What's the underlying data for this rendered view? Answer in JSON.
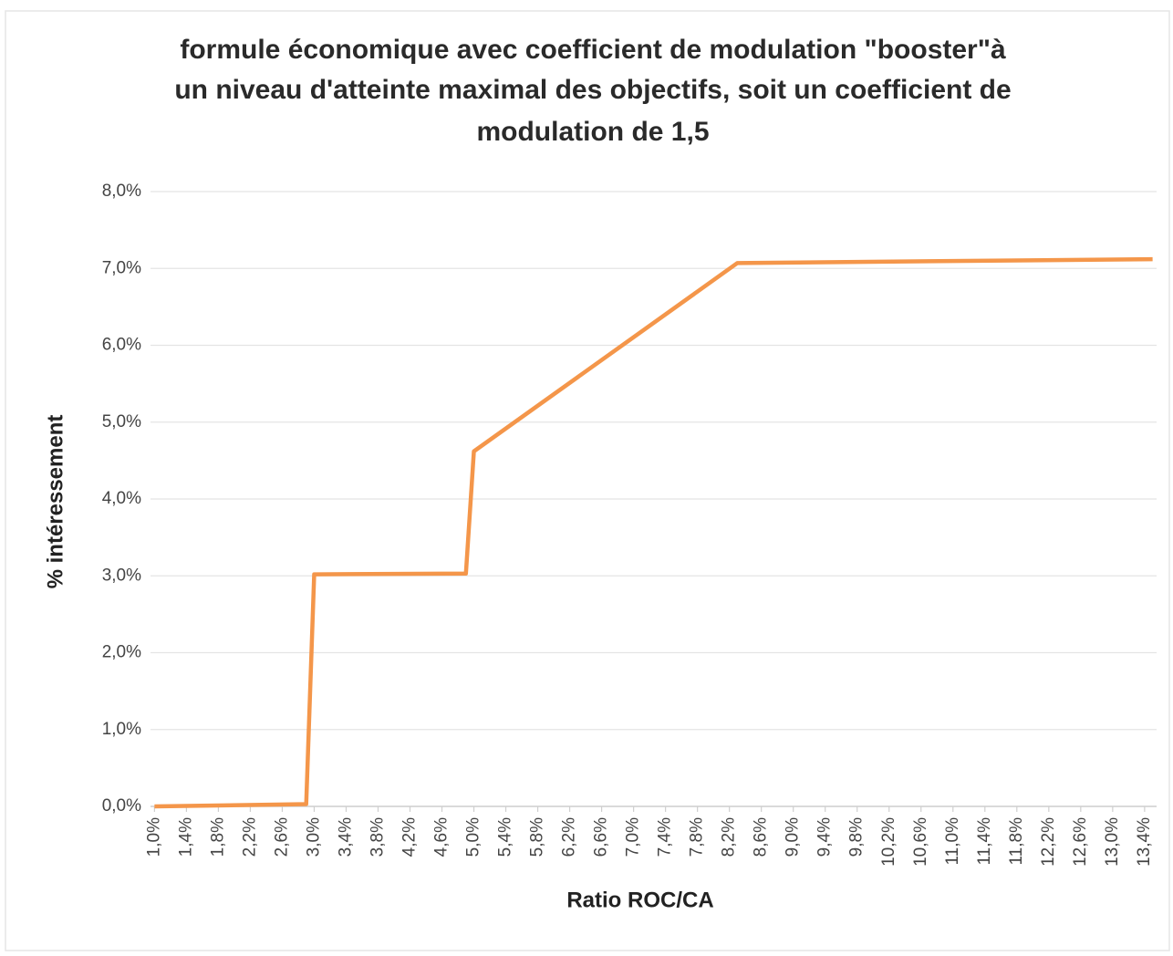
{
  "chart_data": {
    "type": "line",
    "title": [
      "formule économique avec coefficient de modulation \"booster\"à",
      "un niveau d'atteinte maximal des objectifs, soit  un coefficient de",
      "modulation de 1,5"
    ],
    "x_label": "Ratio ROC/CA",
    "y_label": "% intéressement",
    "x": [
      1.0,
      2.9,
      3.0,
      4.9,
      5.0,
      8.3,
      13.5
    ],
    "series": [
      {
        "color": "#f4964a",
        "values": [
          0,
          0.03,
          3.02,
          3.03,
          4.62,
          7.07,
          7.12
        ]
      }
    ],
    "xlim": [
      0.95,
      13.55
    ],
    "xticks": [
      {
        "value": 1.0,
        "label": "1,0%"
      },
      {
        "value": 1.4,
        "label": "1,4%"
      },
      {
        "value": 1.8,
        "label": "1,8%"
      },
      {
        "value": 2.2,
        "label": "2,2%"
      },
      {
        "value": 2.6,
        "label": "2,6%"
      },
      {
        "value": 3.0,
        "label": "3,0%"
      },
      {
        "value": 3.4,
        "label": "3,4%"
      },
      {
        "value": 3.8,
        "label": "3,8%"
      },
      {
        "value": 4.2,
        "label": "4,2%"
      },
      {
        "value": 4.6,
        "label": "4,6%"
      },
      {
        "value": 5.0,
        "label": "5,0%"
      },
      {
        "value": 5.4,
        "label": "5,4%"
      },
      {
        "value": 5.8,
        "label": "5,8%"
      },
      {
        "value": 6.2,
        "label": "6,2%"
      },
      {
        "value": 6.6,
        "label": "6,6%"
      },
      {
        "value": 7.0,
        "label": "7,0%"
      },
      {
        "value": 7.4,
        "label": "7,4%"
      },
      {
        "value": 7.8,
        "label": "7,8%"
      },
      {
        "value": 8.2,
        "label": "8,2%"
      },
      {
        "value": 8.6,
        "label": "8,6%"
      },
      {
        "value": 9.0,
        "label": "9,0%"
      },
      {
        "value": 9.4,
        "label": "9,4%"
      },
      {
        "value": 9.8,
        "label": "9,8%"
      },
      {
        "value": 10.2,
        "label": "10,2%"
      },
      {
        "value": 10.6,
        "label": "10,6%"
      },
      {
        "value": 11.0,
        "label": "11,0%"
      },
      {
        "value": 11.4,
        "label": "11,4%"
      },
      {
        "value": 11.8,
        "label": "11,8%"
      },
      {
        "value": 12.2,
        "label": "12,2%"
      },
      {
        "value": 12.6,
        "label": "12,6%"
      },
      {
        "value": 13.0,
        "label": "13,0%"
      },
      {
        "value": 13.4,
        "label": "13,4%"
      }
    ],
    "ylim": [
      0,
      8
    ],
    "yticks": [
      {
        "value": 0,
        "label": "0,0%"
      },
      {
        "value": 1,
        "label": "1,0%"
      },
      {
        "value": 2,
        "label": "2,0%"
      },
      {
        "value": 3,
        "label": "3,0%"
      },
      {
        "value": 4,
        "label": "4,0%"
      },
      {
        "value": 5,
        "label": "5,0%"
      },
      {
        "value": 6,
        "label": "6,0%"
      },
      {
        "value": 7,
        "label": "7,0%"
      },
      {
        "value": 8,
        "label": "8,0%"
      }
    ],
    "grid": true
  }
}
